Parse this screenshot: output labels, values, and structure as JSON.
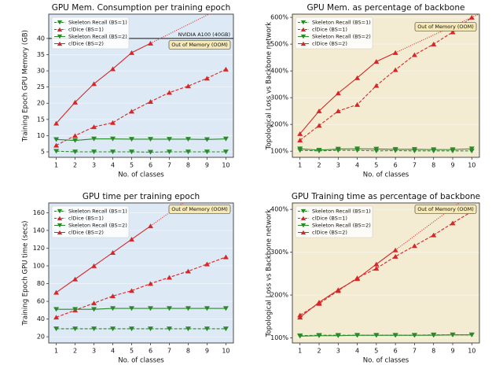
{
  "chart_data": [
    {
      "type": "line",
      "title": "GPU Mem. Consumption per training epoch",
      "x_label": "No. of classes",
      "y_label": "Training Epoch GPU Memory (GB)",
      "background": "#dde9f4",
      "x": [
        1,
        2,
        3,
        4,
        5,
        6,
        7,
        8,
        9,
        10
      ],
      "xlim": [
        0.6,
        10.4
      ],
      "xticks": [
        1,
        2,
        3,
        4,
        5,
        6,
        7,
        8,
        9,
        10
      ],
      "ylim": [
        3.3,
        47.5
      ],
      "yticks": [
        5,
        10,
        15,
        20,
        25,
        30,
        35,
        40
      ],
      "grid": true,
      "legend": "upper left",
      "series": [
        {
          "name": "Skeleton Recall (BS=1)",
          "color": "#2a8a2a",
          "linestyle": "dashed",
          "marker": "v",
          "values": [
            5.2,
            5.0,
            5.0,
            5.0,
            5.0,
            4.9,
            5.0,
            5.0,
            5.0,
            5.0
          ]
        },
        {
          "name": "clDice (BS=1)",
          "color": "#d62728",
          "linestyle": "dashed",
          "marker": "^",
          "values": [
            7,
            10,
            12.7,
            14,
            17.5,
            20.5,
            23.3,
            25.3,
            27.7,
            30.5
          ]
        },
        {
          "name": "Skeleton Recall (BS=2)",
          "color": "#2a8a2a",
          "linestyle": "solid",
          "marker": "v",
          "values": [
            8.8,
            8.5,
            9,
            9,
            8.9,
            8.9,
            8.9,
            8.9,
            8.8,
            9
          ]
        },
        {
          "name": "clDice (BS=2)",
          "color": "#d62728",
          "linestyle": "solid",
          "marker": "^",
          "values": [
            13.8,
            20.3,
            26,
            30.6,
            35.6,
            38.5,
            null,
            null,
            null,
            null
          ]
        }
      ],
      "hline": {
        "value": 40,
        "label": "NVIDIA A100 (40GB)"
      },
      "annotation": "Out of Memory (OOM)"
    },
    {
      "type": "line",
      "title": "GPU Mem. as percentage of backbone",
      "x_label": "No. of classes",
      "y_label": "Topological Loss vs Backbone network",
      "background": "#f3ebd2",
      "x": [
        1,
        2,
        3,
        4,
        5,
        6,
        7,
        8,
        9,
        10
      ],
      "xlim": [
        0.6,
        10.4
      ],
      "xticks": [
        1,
        2,
        3,
        4,
        5,
        6,
        7,
        8,
        9,
        10
      ],
      "ylim": [
        77,
        612
      ],
      "yticks": [
        {
          "value": 100,
          "label": "100%"
        },
        {
          "value": 200,
          "label": "200%"
        },
        {
          "value": 300,
          "label": "300%"
        },
        {
          "value": 400,
          "label": "400%"
        },
        {
          "value": 500,
          "label": "500%"
        },
        {
          "value": 600,
          "label": "600%"
        }
      ],
      "grid": true,
      "legend": "upper left",
      "series": [
        {
          "name": "Skeleton Recall (BS=1)",
          "color": "#2a8a2a",
          "linestyle": "dashed",
          "marker": "v",
          "values": [
            103,
            101,
            103,
            103,
            101,
            102,
            101,
            101,
            101,
            101
          ]
        },
        {
          "name": "clDice (BS=1)",
          "color": "#d62728",
          "linestyle": "dashed",
          "marker": "^",
          "values": [
            141,
            196,
            250,
            274,
            345,
            404,
            460,
            500,
            545,
            600
          ]
        },
        {
          "name": "Skeleton Recall (BS=2)",
          "color": "#2a8a2a",
          "linestyle": "solid",
          "marker": "v",
          "values": [
            109,
            104,
            108,
            109,
            108,
            107,
            107,
            106,
            106,
            109
          ]
        },
        {
          "name": "clDice (BS=2)",
          "color": "#d62728",
          "linestyle": "solid",
          "marker": "^",
          "values": [
            165,
            250,
            317,
            374,
            435,
            468,
            null,
            null,
            null,
            null
          ]
        }
      ],
      "annotation": "Out of Memory (OOM)"
    },
    {
      "type": "line",
      "title": "GPU time per training epoch",
      "x_label": "No. of classes",
      "y_label": "Training Epoch GPU time (secs)",
      "background": "#dde9f4",
      "x": [
        1,
        2,
        3,
        4,
        5,
        6,
        7,
        8,
        9,
        10
      ],
      "xlim": [
        0.6,
        10.4
      ],
      "xticks": [
        1,
        2,
        3,
        4,
        5,
        6,
        7,
        8,
        9,
        10
      ],
      "ylim": [
        13,
        171
      ],
      "yticks": [
        20,
        40,
        60,
        80,
        100,
        120,
        140,
        160
      ],
      "grid": true,
      "legend": "upper left",
      "series": [
        {
          "name": "Skeleton Recall (BS=1)",
          "color": "#2a8a2a",
          "linestyle": "dashed",
          "marker": "v",
          "values": [
            29,
            29,
            29,
            29,
            29,
            29,
            29,
            29,
            29,
            29
          ]
        },
        {
          "name": "clDice (BS=1)",
          "color": "#d62728",
          "linestyle": "dashed",
          "marker": "^",
          "values": [
            42,
            50,
            58,
            66,
            72,
            80,
            87,
            94,
            102,
            110
          ]
        },
        {
          "name": "Skeleton Recall (BS=2)",
          "color": "#2a8a2a",
          "linestyle": "solid",
          "marker": "v",
          "values": [
            51,
            51,
            51,
            52,
            52,
            52,
            52,
            52,
            52,
            52
          ]
        },
        {
          "name": "clDice (BS=2)",
          "color": "#d62728",
          "linestyle": "solid",
          "marker": "^",
          "values": [
            70,
            85,
            100,
            115,
            130,
            145,
            null,
            null,
            null,
            null
          ]
        }
      ],
      "annotation": "Out of Memory (OOM)"
    },
    {
      "type": "line",
      "title": "GPU Training time as percentage of backbone",
      "x_label": "No. of classes",
      "y_label": "Topological Loss vs Backbone network",
      "background": "#f3ebd2",
      "x": [
        1,
        2,
        3,
        4,
        5,
        6,
        7,
        8,
        9,
        10
      ],
      "xlim": [
        0.6,
        10.4
      ],
      "xticks": [
        1,
        2,
        3,
        4,
        5,
        6,
        7,
        8,
        9,
        10
      ],
      "ylim": [
        88,
        415
      ],
      "yticks": [
        {
          "value": 100,
          "label": "100%"
        },
        {
          "value": 200,
          "label": "200%"
        },
        {
          "value": 300,
          "label": "300%"
        },
        {
          "value": 400,
          "label": "400%"
        }
      ],
      "grid": true,
      "legend": "upper left",
      "series": [
        {
          "name": "Skeleton Recall (BS=1)",
          "color": "#2a8a2a",
          "linestyle": "dashed",
          "marker": "v",
          "values": [
            105,
            106,
            106,
            106,
            106,
            106,
            106,
            107,
            107,
            107
          ]
        },
        {
          "name": "clDice (BS=1)",
          "color": "#d62728",
          "linestyle": "dashed",
          "marker": "^",
          "values": [
            153,
            180,
            210,
            240,
            262,
            290,
            315,
            340,
            368,
            395
          ]
        },
        {
          "name": "Skeleton Recall (BS=2)",
          "color": "#2a8a2a",
          "linestyle": "solid",
          "marker": "v",
          "values": [
            104,
            105,
            105,
            106,
            106,
            106,
            106,
            106,
            107,
            107
          ]
        },
        {
          "name": "clDice (BS=2)",
          "color": "#d62728",
          "linestyle": "solid",
          "marker": "^",
          "values": [
            148,
            183,
            212,
            238,
            272,
            305,
            null,
            null,
            null,
            null
          ]
        }
      ],
      "annotation": "Out of Memory (OOM)"
    }
  ]
}
